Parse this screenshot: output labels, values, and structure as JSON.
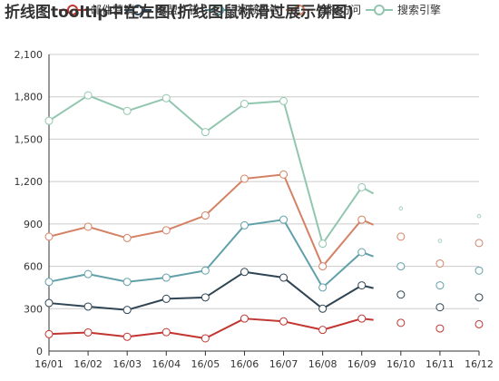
{
  "chart_data": {
    "type": "line",
    "title": "折线图tooltip中在左图(折线图鼠标滑过展示饼图)",
    "categories": [
      "16/01",
      "16/02",
      "16/03",
      "16/04",
      "16/05",
      "16/06",
      "16/07",
      "16/08",
      "16/09",
      "16/10",
      "16/11",
      "16/12"
    ],
    "ylim": [
      0,
      2100
    ],
    "yticks": [
      0,
      300,
      600,
      900,
      1200,
      1500,
      1800,
      2100
    ],
    "ytick_labels": [
      "0",
      "300",
      "600",
      "900",
      "1,200",
      "1,500",
      "1,800",
      "2,100"
    ],
    "grid": true,
    "series": [
      {
        "name": "邮件营销",
        "color": "#c23531",
        "values": [
          120,
          132,
          101,
          134,
          90,
          230,
          210,
          150,
          230,
          200,
          160,
          190
        ]
      },
      {
        "name": "联盟广告",
        "color": "#2f4554",
        "values": [
          340,
          315,
          291,
          370,
          380,
          560,
          520,
          300,
          465,
          400,
          310,
          380
        ]
      },
      {
        "name": "视频广告",
        "color": "#61a0a8",
        "values": [
          490,
          545,
          490,
          520,
          570,
          890,
          930,
          450,
          700,
          600,
          465,
          570
        ]
      },
      {
        "name": "直接访问",
        "color": "#d48265",
        "values": [
          810,
          880,
          800,
          855,
          960,
          1220,
          1250,
          600,
          930,
          810,
          620,
          765
        ]
      },
      {
        "name": "搜索引擎",
        "color": "#91c7ae",
        "values": [
          1630,
          1810,
          1700,
          1790,
          1550,
          1750,
          1770,
          760,
          1160,
          1010,
          780,
          955
        ]
      }
    ],
    "legend_position": "top"
  }
}
